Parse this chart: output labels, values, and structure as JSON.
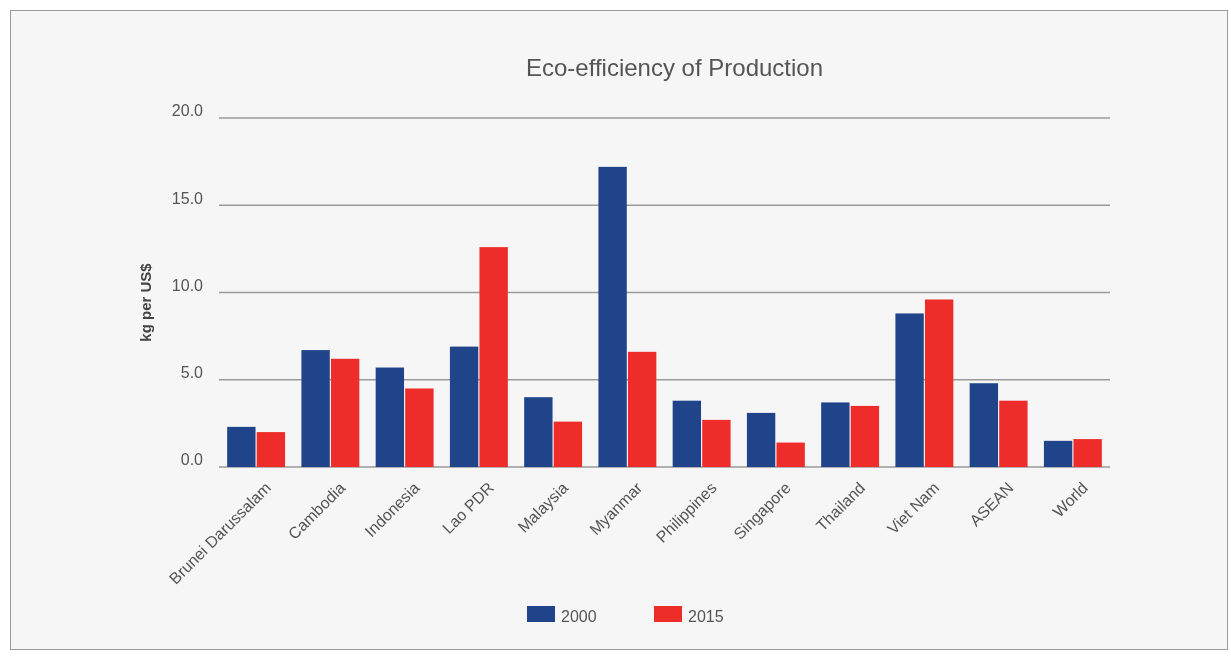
{
  "chart_data": {
    "type": "bar",
    "title": "Eco-efficiency of Production",
    "ylabel": "kg per US$",
    "categories": [
      "Brunei Darussalam",
      "Cambodia",
      "Indonesia",
      "Lao PDR",
      "Malaysia",
      "Myanmar",
      "Philippines",
      "Singapore",
      "Thailand",
      "Viet Nam",
      "ASEAN",
      "World"
    ],
    "series": [
      {
        "name": "2000",
        "color": "#1f448a",
        "values": [
          2.3,
          6.7,
          5.7,
          6.9,
          4.0,
          17.2,
          3.8,
          3.1,
          3.7,
          8.8,
          4.8,
          1.5
        ]
      },
      {
        "name": "2015",
        "color": "#ee2c2a",
        "values": [
          2.0,
          6.2,
          4.5,
          12.6,
          2.6,
          6.6,
          2.7,
          1.4,
          3.5,
          9.6,
          3.8,
          1.6
        ]
      }
    ],
    "ylim": [
      0,
      20
    ],
    "yticks": [
      {
        "value": 0,
        "label": "0.0"
      },
      {
        "value": 5,
        "label": "5.0"
      },
      {
        "value": 10,
        "label": "10.0"
      },
      {
        "value": 15,
        "label": "15.0"
      },
      {
        "value": 20,
        "label": "20.0"
      }
    ],
    "grid": "y",
    "legend": "bottom"
  }
}
